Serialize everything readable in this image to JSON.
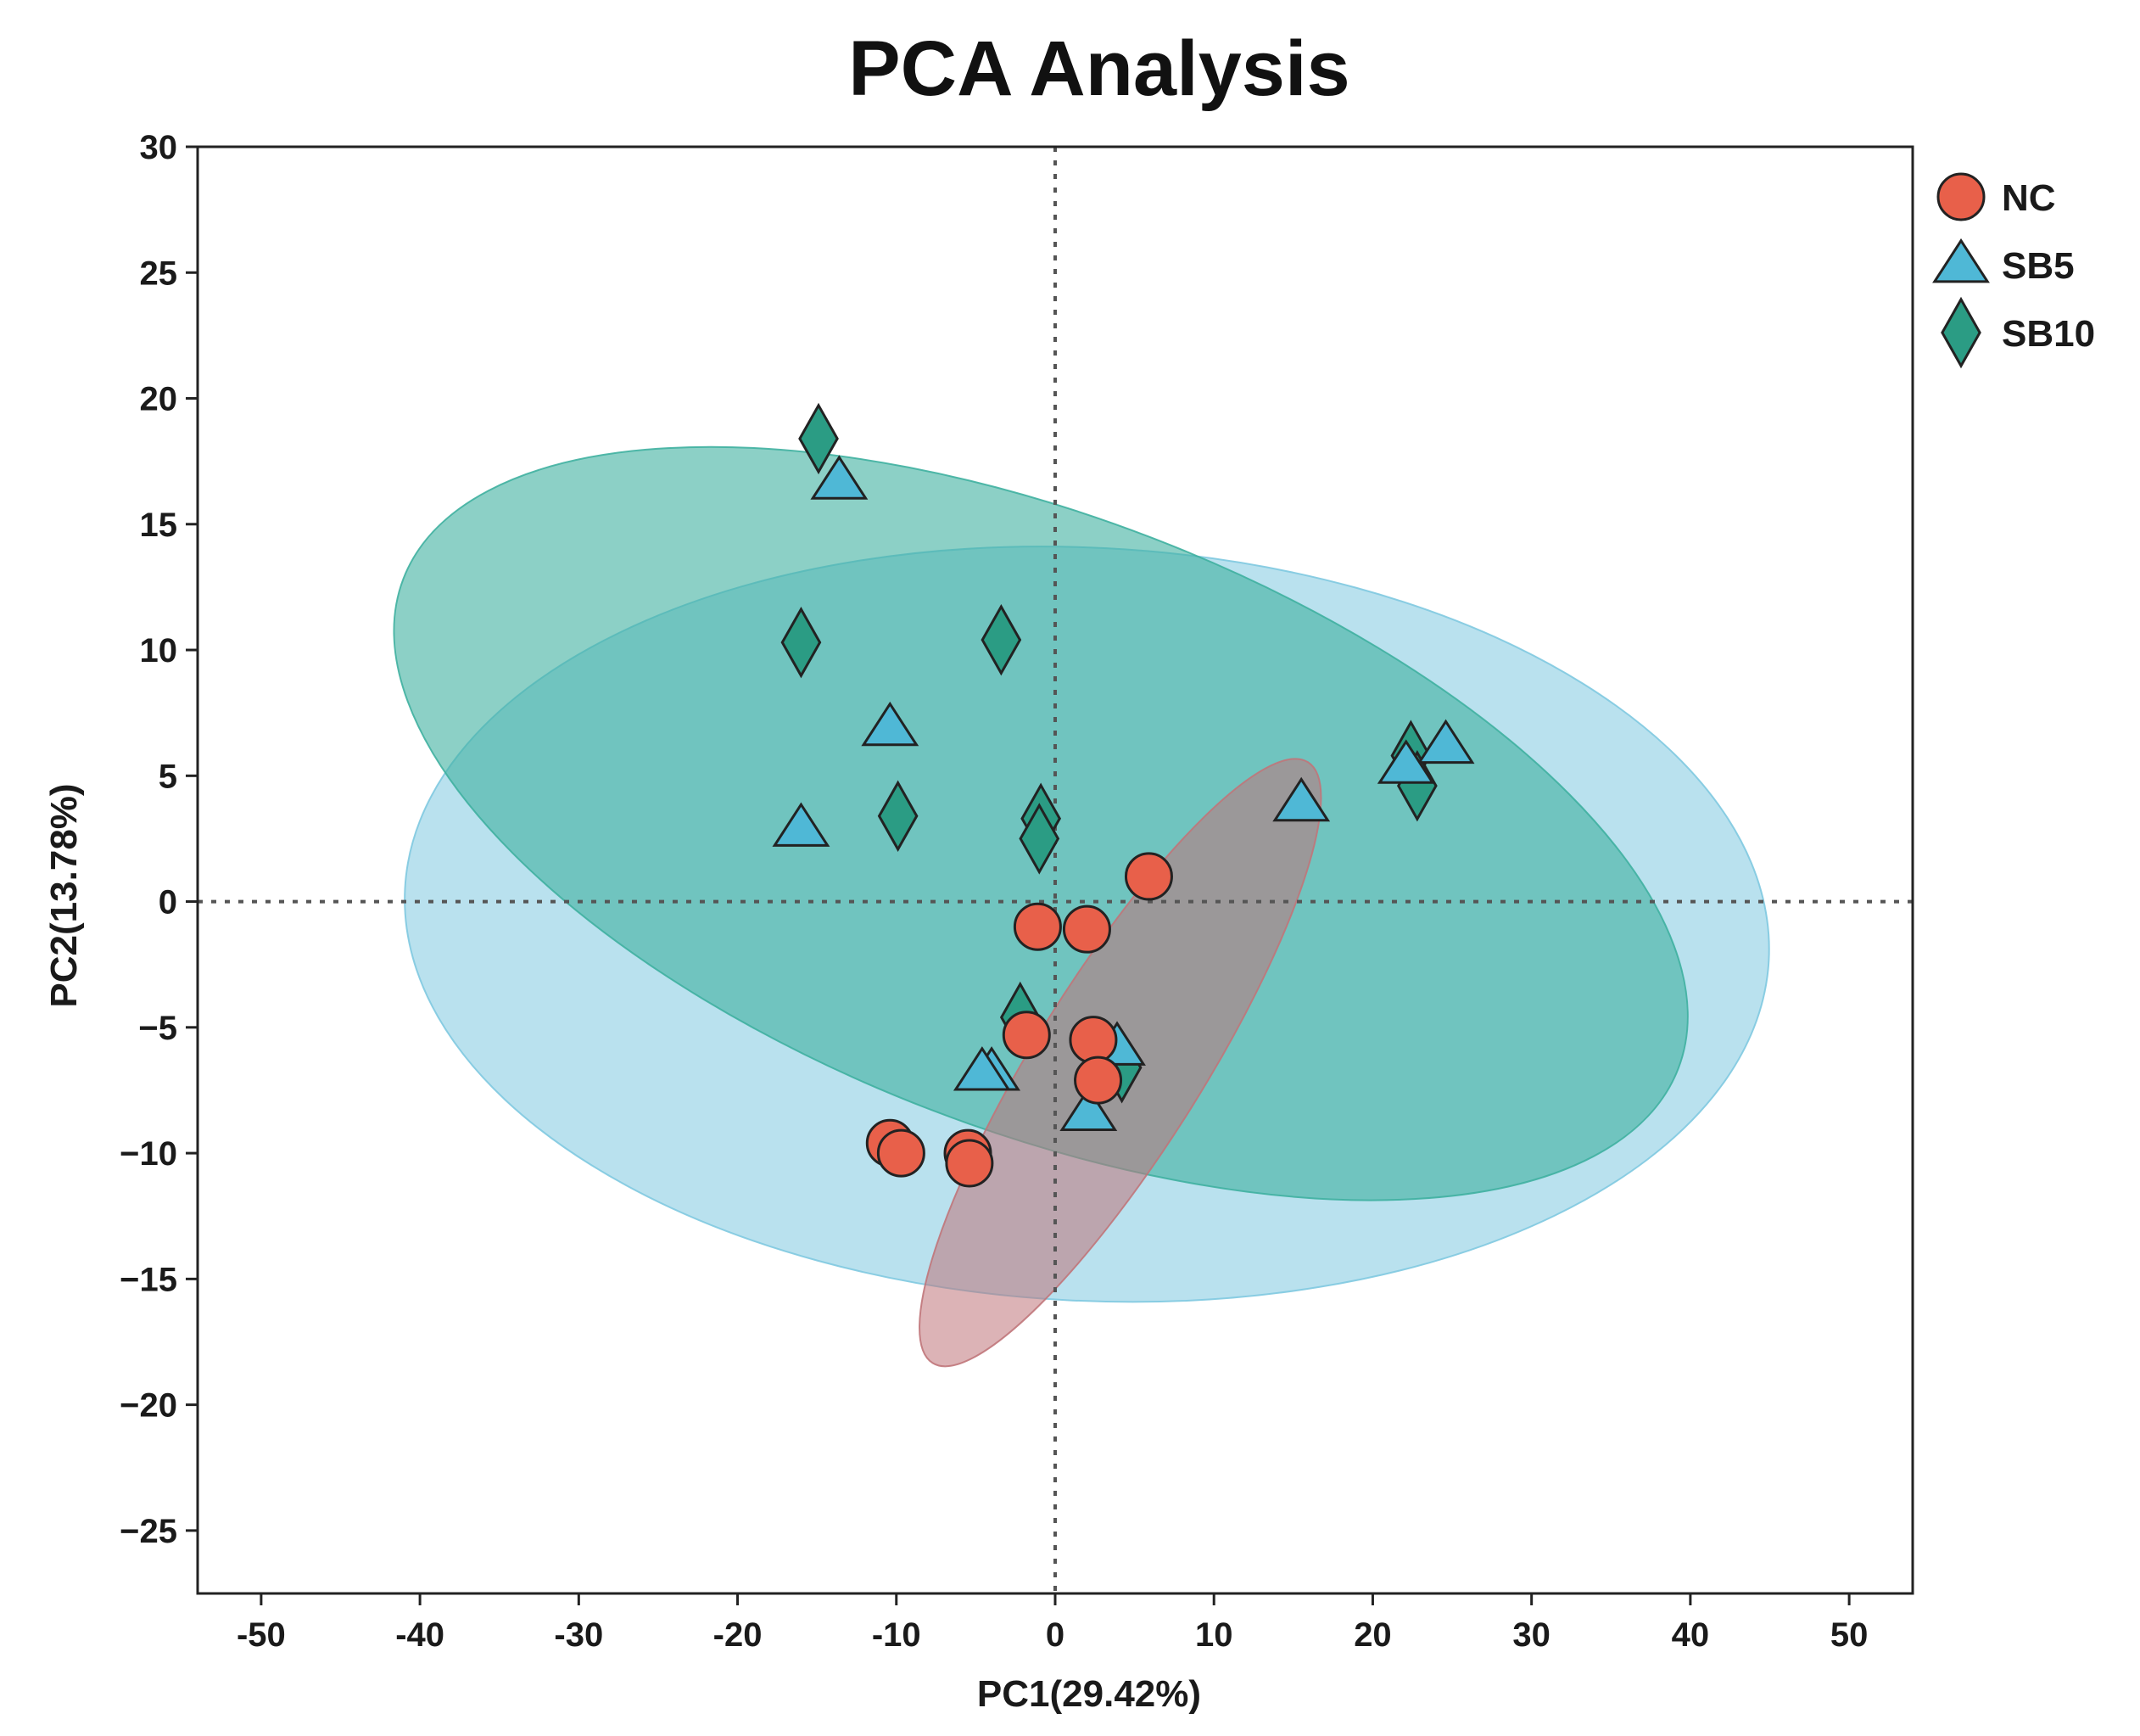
{
  "chart_data": {
    "type": "scatter",
    "title": "PCA Analysis",
    "xlabel": "PC1(29.42%)",
    "ylabel": "PC2(13.78%)",
    "xlim": [
      -54,
      54
    ],
    "ylim": [
      -27.5,
      30
    ],
    "xticks": [
      -50,
      -40,
      -30,
      -20,
      -10,
      0,
      10,
      20,
      30,
      40,
      50
    ],
    "xtick_labels": [
      "-50",
      "-40",
      "-30",
      "-20",
      "-10",
      "0",
      "10",
      "20",
      "30",
      "40",
      "50"
    ],
    "yticks": [
      30,
      25,
      20,
      15,
      10,
      5,
      0,
      -5,
      -10,
      -15,
      -20,
      -25
    ],
    "ytick_labels": [
      "30",
      "25",
      "20",
      "15",
      "10",
      "5",
      "0",
      "−5",
      "−10",
      "−15",
      "−20",
      "−25"
    ],
    "grid": false,
    "reference_lines": {
      "x": 0,
      "y": 0,
      "style": "dotted"
    },
    "legend_position": "outside-top-right",
    "series": [
      {
        "name": "NC",
        "marker": "circle",
        "color": "#e8604a",
        "ellipse_color": "#c0757a",
        "ellipse": {
          "center": [
            4.1,
            -6.4
          ],
          "semi_axes": [
            22.3,
            5.3
          ],
          "angle_deg": 58
        },
        "points": [
          [
            5.9,
            1.0
          ],
          [
            -1.1,
            -1.0
          ],
          [
            2.0,
            -1.1
          ],
          [
            -1.8,
            -5.3
          ],
          [
            2.4,
            -5.5
          ],
          [
            2.7,
            -7.1
          ],
          [
            -10.4,
            -9.6
          ],
          [
            -9.7,
            -10.0
          ],
          [
            -5.5,
            -10.0
          ],
          [
            -5.4,
            -10.4
          ]
        ]
      },
      {
        "name": "SB5",
        "marker": "triangle",
        "color": "#4fb8d6",
        "ellipse_color": "#7fc9e0",
        "ellipse": {
          "center": [
            2.0,
            -0.9
          ],
          "semi_axes": [
            43.0,
            23.7
          ],
          "angle_deg": -3
        },
        "points": [
          [
            -13.6,
            16.7
          ],
          [
            -10.4,
            6.9
          ],
          [
            -16.0,
            2.9
          ],
          [
            15.5,
            3.9
          ],
          [
            24.6,
            6.2
          ],
          [
            22.1,
            5.4
          ],
          [
            3.9,
            -5.8
          ],
          [
            -4.0,
            -6.8
          ],
          [
            -4.6,
            -6.8
          ],
          [
            2.1,
            -8.4
          ]
        ]
      },
      {
        "name": "SB10",
        "marker": "diamond",
        "color": "#2b9c84",
        "ellipse_color": "#3fb0a0",
        "ellipse": {
          "center": [
            -0.9,
            3.1
          ],
          "semi_axes": [
            43.0,
            19.3
          ],
          "angle_deg": -21
        },
        "points": [
          [
            -14.9,
            18.4
          ],
          [
            -16.0,
            10.3
          ],
          [
            -3.4,
            10.4
          ],
          [
            -9.9,
            3.4
          ],
          [
            -0.9,
            3.3
          ],
          [
            -1.0,
            2.5
          ],
          [
            22.4,
            5.8
          ],
          [
            22.8,
            4.6
          ],
          [
            -2.2,
            -4.6
          ],
          [
            4.2,
            -6.6
          ]
        ]
      }
    ]
  }
}
